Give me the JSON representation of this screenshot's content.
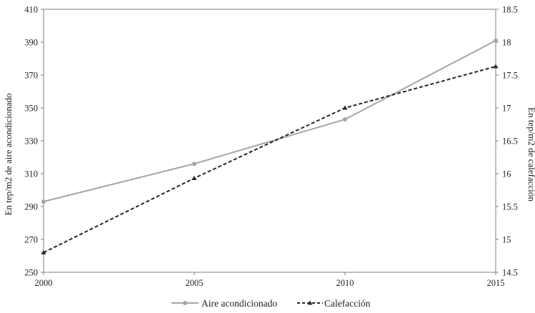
{
  "chart_data": {
    "type": "line",
    "x": [
      2000,
      2005,
      2010,
      2015
    ],
    "x_ticks": [
      "2000",
      "2005",
      "2010",
      "2015"
    ],
    "xlim": [
      2000,
      2015
    ],
    "ylabel_left": "En tep/m2 de aire acondicionado",
    "ylabel_right": "En tep/m2 de calefacción",
    "ylim_left": [
      250,
      410
    ],
    "ylim_right": [
      14.5,
      18.5
    ],
    "y_ticks_left": [
      "250",
      "270",
      "290",
      "310",
      "330",
      "350",
      "370",
      "390",
      "410"
    ],
    "y_ticks_right": [
      "14.5",
      "15",
      "15.5",
      "16",
      "16.5",
      "17",
      "17.5",
      "18",
      "18.5"
    ],
    "grid": false,
    "legend_position": "bottom",
    "series": [
      {
        "name": "Aire acondicionado",
        "axis": "left",
        "values": [
          293,
          316,
          343,
          391
        ],
        "color": "#a6a6a6",
        "line_style": "solid",
        "marker": "circle"
      },
      {
        "name": "Calefacción",
        "axis": "right",
        "values": [
          14.8,
          15.93,
          17.0,
          17.63
        ],
        "color": "#262626",
        "line_style": "dashed",
        "marker": "triangle"
      }
    ]
  }
}
